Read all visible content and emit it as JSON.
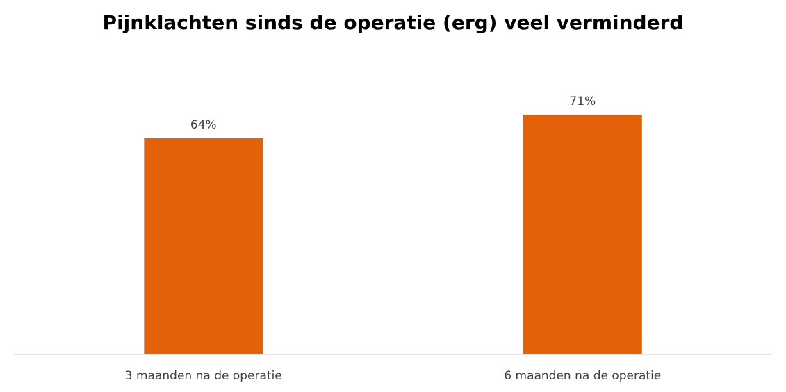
{
  "chart_data": {
    "type": "bar",
    "title": "Pijnklachten sinds de operatie (erg) veel verminderd",
    "categories": [
      "3 maanden na de operatie",
      "6 maanden na de operatie"
    ],
    "values": [
      64,
      71
    ],
    "value_labels": [
      "64%",
      "71%"
    ],
    "ylim": [
      0,
      100
    ],
    "grid": false,
    "legend": "none",
    "bar_color": "#E36209",
    "axis_color": "#D9D9D9",
    "label_color": "#404040"
  }
}
